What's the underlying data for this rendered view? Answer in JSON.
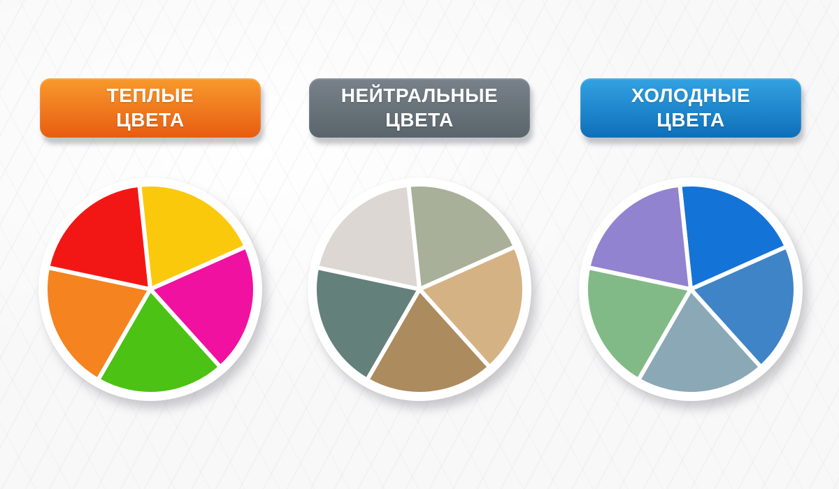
{
  "page": {
    "description": "Infographic with three pie charts classifying colors into warm, neutral and cold groups",
    "language": "ru",
    "background_color": "#F8F8F9"
  },
  "panels": [
    {
      "id": "warm",
      "title_line1": "ТЕПЛЫЕ",
      "title_line2": "ЦВЕТА",
      "badge_gradient_top": "#F89A2D",
      "badge_gradient_bottom": "#E85C10",
      "text_color": "#FFFFFF"
    },
    {
      "id": "neutral",
      "title_line1": "НЕЙТРАЛЬНЫЕ",
      "title_line2": "ЦВЕТА",
      "badge_gradient_top": "#79828A",
      "badge_gradient_bottom": "#59646B",
      "text_color": "#FFFFFF"
    },
    {
      "id": "cold",
      "title_line1": "ХОЛОДНЫЕ",
      "title_line2": "ЦВЕТА",
      "badge_gradient_top": "#33A2E2",
      "badge_gradient_bottom": "#0D6FB9",
      "text_color": "#FFFFFF"
    }
  ],
  "chart_data": [
    {
      "type": "pie",
      "title": "ТЕПЛЫЕ ЦВЕТА",
      "legend_position": "none",
      "rotation_deg": -6,
      "gap_color": "#FFFFFF",
      "segments": [
        {
          "name": "yellow",
          "value": 20,
          "color": "#FBC90B"
        },
        {
          "name": "magenta",
          "value": 20,
          "color": "#F011A0"
        },
        {
          "name": "green",
          "value": 20,
          "color": "#4CC214"
        },
        {
          "name": "orange",
          "value": 20,
          "color": "#F5831F"
        },
        {
          "name": "red",
          "value": 20,
          "color": "#F21715"
        }
      ]
    },
    {
      "type": "pie",
      "title": "НЕЙТРАЛЬНЫЕ ЦВЕТА",
      "legend_position": "none",
      "rotation_deg": -6,
      "gap_color": "#FFFFFF",
      "segments": [
        {
          "name": "sage-gray",
          "value": 20,
          "color": "#A9B099"
        },
        {
          "name": "tan",
          "value": 20,
          "color": "#D5B284"
        },
        {
          "name": "brown",
          "value": 20,
          "color": "#AC8B5E"
        },
        {
          "name": "slate-gray",
          "value": 20,
          "color": "#63807B"
        },
        {
          "name": "light-gray",
          "value": 20,
          "color": "#DCD7D3"
        }
      ]
    },
    {
      "type": "pie",
      "title": "ХОЛОДНЫЕ ЦВЕТА",
      "legend_position": "none",
      "rotation_deg": -6,
      "gap_color": "#FFFFFF",
      "segments": [
        {
          "name": "blue",
          "value": 20,
          "color": "#1473D6"
        },
        {
          "name": "steel-blue",
          "value": 20,
          "color": "#3F84C7"
        },
        {
          "name": "gray-blue",
          "value": 20,
          "color": "#8BA8B6"
        },
        {
          "name": "sage-green",
          "value": 20,
          "color": "#81BA87"
        },
        {
          "name": "purple",
          "value": 20,
          "color": "#9183D0"
        }
      ]
    }
  ]
}
